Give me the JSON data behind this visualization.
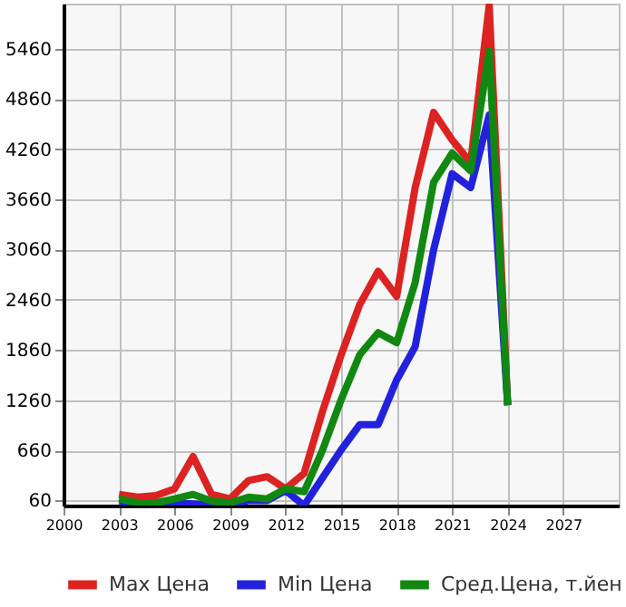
{
  "chart_data": {
    "type": "line",
    "x": [
      2003,
      2004,
      2005,
      2006,
      2007,
      2008,
      2009,
      2010,
      2011,
      2012,
      2013,
      2014,
      2015,
      2016,
      2017,
      2018,
      2019,
      2020,
      2021,
      2022,
      2023,
      2024
    ],
    "series": [
      {
        "name": "Max Цена",
        "color": "#dd2222",
        "values": [
          133,
          100,
          120,
          200,
          585,
          133,
          80,
          300,
          345,
          200,
          385,
          1130,
          1800,
          2400,
          2800,
          2500,
          3800,
          4700,
          4370,
          4100,
          5980,
          1200
        ]
      },
      {
        "name": "Min Цена",
        "color": "#2222dd",
        "values": [
          20,
          10,
          20,
          30,
          20,
          10,
          10,
          60,
          60,
          180,
          0,
          333,
          665,
          966,
          966,
          1500,
          1900,
          3060,
          3966,
          3800,
          4666,
          1200
        ]
      },
      {
        "name": "Сред.Цена, т.йен",
        "color": "#118811",
        "values": [
          80,
          33,
          33,
          80,
          133,
          53,
          33,
          100,
          80,
          200,
          165,
          665,
          1265,
          1800,
          2066,
          1946,
          2666,
          3866,
          4213,
          4000,
          5433,
          1200
        ]
      }
    ],
    "xlim": [
      2000,
      2030
    ],
    "xticks": [
      2000,
      2003,
      2006,
      2009,
      2012,
      2015,
      2018,
      2021,
      2024,
      2027
    ],
    "ylim": [
      0,
      6000
    ],
    "yticks": [
      60,
      660,
      1260,
      1860,
      2460,
      3060,
      3660,
      4260,
      4860,
      5460
    ],
    "grid": true,
    "legend": "bottom",
    "marker": "none",
    "line_style": "solid"
  }
}
